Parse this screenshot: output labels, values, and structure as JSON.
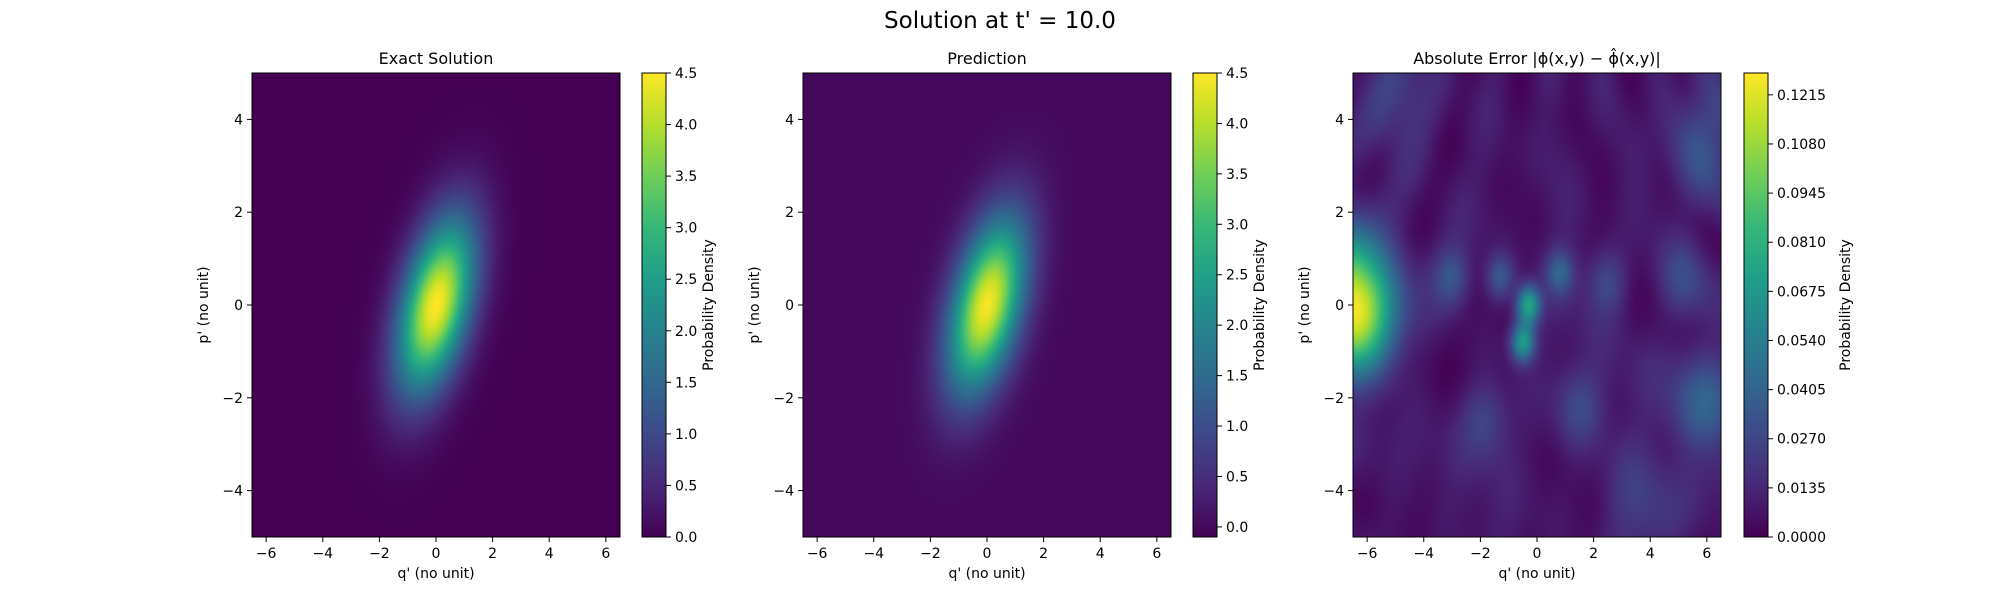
{
  "figure": {
    "title": "Solution at t' = 10.0"
  },
  "colors": {
    "viridis": [
      "#440154",
      "#482878",
      "#3e4989",
      "#31688e",
      "#26828e",
      "#1f9e89",
      "#35b779",
      "#6ece58",
      "#b5de2b",
      "#fde725"
    ]
  },
  "chart_data": [
    {
      "type": "heatmap",
      "title": "Exact Solution",
      "xlabel": "q' (no unit)",
      "ylabel": "p' (no unit)",
      "xlim": [
        -6.5,
        6.5
      ],
      "ylim": [
        -5,
        5
      ],
      "xticks": [
        -6,
        -4,
        -2,
        0,
        2,
        4,
        6
      ],
      "yticks": [
        -4,
        -2,
        0,
        2,
        4
      ],
      "colorbar": {
        "label": "Probability Density",
        "range": [
          0,
          4.5
        ],
        "ticks": [
          "0.0",
          "0.5",
          "1.0",
          "1.5",
          "2.0",
          "2.5",
          "3.0",
          "3.5",
          "4.0",
          "4.5"
        ],
        "tick_values": [
          0,
          0.5,
          1.0,
          1.5,
          2.0,
          2.5,
          3.0,
          3.5,
          4.0,
          4.5
        ]
      },
      "field": {
        "model": "tilted-gaussian",
        "peak": 4.5,
        "center": [
          0.0,
          0.0
        ],
        "spread_q": 0.95,
        "spread_p": 1.3,
        "correlation": 0.45
      }
    },
    {
      "type": "heatmap",
      "title": "Prediction",
      "xlabel": "q' (no unit)",
      "ylabel": "p' (no unit)",
      "xlim": [
        -6.5,
        6.5
      ],
      "ylim": [
        -5,
        5
      ],
      "xticks": [
        -6,
        -4,
        -2,
        0,
        2,
        4,
        6
      ],
      "yticks": [
        -4,
        -2,
        0,
        2,
        4
      ],
      "colorbar": {
        "label": "Probability Density",
        "range": [
          -0.1,
          4.5
        ],
        "ticks": [
          "0.0",
          "0.5",
          "1.0",
          "1.5",
          "2.0",
          "2.5",
          "3.0",
          "3.5",
          "4.0",
          "4.5"
        ],
        "tick_values": [
          0,
          0.5,
          1.0,
          1.5,
          2.0,
          2.5,
          3.0,
          3.5,
          4.0,
          4.5
        ]
      },
      "field": {
        "model": "tilted-gaussian",
        "peak": 4.45,
        "center": [
          0.0,
          0.0
        ],
        "spread_q": 0.95,
        "spread_p": 1.3,
        "correlation": 0.45
      }
    },
    {
      "type": "heatmap",
      "title": "Absolute Error |ϕ(x,y) − ϕ̂(x,y)|",
      "xlabel": "q' (no unit)",
      "ylabel": "p' (no unit)",
      "xlim": [
        -6.5,
        6.5
      ],
      "ylim": [
        -5,
        5
      ],
      "xticks": [
        -6,
        -4,
        -2,
        0,
        2,
        4,
        6
      ],
      "yticks": [
        -4,
        -2,
        0,
        2,
        4
      ],
      "colorbar": {
        "label": "Probability Density",
        "range": [
          0,
          0.1275
        ],
        "ticks": [
          "0.0000",
          "0.0135",
          "0.0270",
          "0.0405",
          "0.0540",
          "0.0675",
          "0.0810",
          "0.0945",
          "0.1080",
          "0.1215"
        ],
        "tick_values": [
          0,
          0.0135,
          0.027,
          0.0405,
          0.054,
          0.0675,
          0.081,
          0.0945,
          0.108,
          0.1215
        ]
      },
      "field": {
        "model": "error-blobs",
        "blobs": [
          {
            "center": [
              -6.5,
              0.0
            ],
            "amp": 0.125,
            "spread": 1.0
          },
          {
            "center": [
              -0.3,
              0.0
            ],
            "amp": 0.07,
            "spread": 0.3
          },
          {
            "center": [
              -0.5,
              -0.8
            ],
            "amp": 0.065,
            "spread": 0.3
          },
          {
            "center": [
              -1.3,
              0.6
            ],
            "amp": 0.03,
            "spread": 0.35
          },
          {
            "center": [
              0.8,
              0.7
            ],
            "amp": 0.03,
            "spread": 0.35
          },
          {
            "center": [
              -3.0,
              0.6
            ],
            "amp": 0.025,
            "spread": 0.45
          },
          {
            "center": [
              2.5,
              0.5
            ],
            "amp": 0.022,
            "spread": 0.5
          },
          {
            "center": [
              5.2,
              0.5
            ],
            "amp": 0.02,
            "spread": 0.6
          },
          {
            "center": [
              6.0,
              -2.2
            ],
            "amp": 0.03,
            "spread": 0.9
          },
          {
            "center": [
              -1.8,
              -2.5
            ],
            "amp": 0.02,
            "spread": 0.6
          },
          {
            "center": [
              1.5,
              -2.2
            ],
            "amp": 0.02,
            "spread": 0.6
          },
          {
            "center": [
              -5.0,
              4.5
            ],
            "amp": 0.02,
            "spread": 0.8
          },
          {
            "center": [
              6.0,
              3.5
            ],
            "amp": 0.025,
            "spread": 0.9
          },
          {
            "center": [
              3.5,
              -4.0
            ],
            "amp": 0.018,
            "spread": 0.9
          }
        ],
        "ripple": 0.014
      }
    }
  ]
}
